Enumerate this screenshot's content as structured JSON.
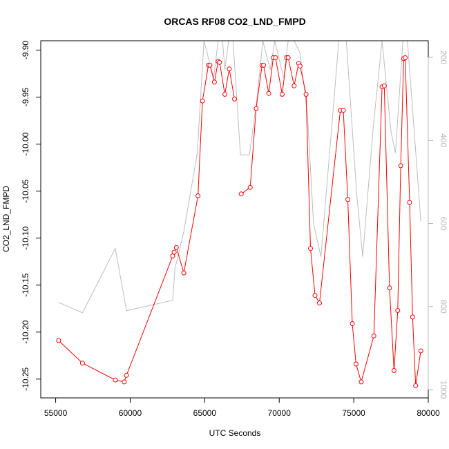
{
  "chart_data": {
    "type": "line",
    "title": "ORCAS RF08 CO2_LND_FMPD",
    "xlabel": "UTC Seconds",
    "ylabel": "CO2_LND_FMPD",
    "xlim": [
      54000,
      80000
    ],
    "ylim": [
      -10.27,
      -9.89
    ],
    "x_ticks": [
      55000,
      60000,
      65000,
      70000,
      75000,
      80000
    ],
    "y_ticks": [
      -9.9,
      -9.95,
      -10.0,
      -10.05,
      -10.1,
      -10.15,
      -10.2,
      -10.25
    ],
    "y_tick_labels": [
      "-9.90",
      "-9.95",
      "-10.00",
      "-10.05",
      "-10.10",
      "-10.15",
      "-10.20",
      "-10.25"
    ],
    "y2lim": [
      1020,
      160
    ],
    "y2_ticks": [
      200,
      400,
      600,
      800,
      1000
    ],
    "grid": false,
    "series": [
      {
        "color": "#ff0000",
        "style": "line-with-circles",
        "gap_after_index": 17,
        "points": [
          [
            55200,
            -10.209
          ],
          [
            56800,
            -10.233
          ],
          [
            59000,
            -10.251
          ],
          [
            59600,
            -10.253
          ],
          [
            59750,
            -10.246
          ],
          [
            62850,
            -10.119
          ],
          [
            62950,
            -10.115
          ],
          [
            63100,
            -10.11
          ],
          [
            63600,
            -10.137
          ],
          [
            64550,
            -10.055
          ],
          [
            64850,
            -9.954
          ],
          [
            65250,
            -9.916
          ],
          [
            65350,
            -9.916
          ],
          [
            65650,
            -9.934
          ],
          [
            65900,
            -9.912
          ],
          [
            66000,
            -9.913
          ],
          [
            66350,
            -9.947
          ],
          [
            66650,
            -9.92
          ],
          [
            67000,
            -9.952
          ],
          [
            67450,
            -10.053
          ],
          [
            68050,
            -10.046
          ],
          [
            68450,
            -9.962
          ],
          [
            68850,
            -9.916
          ],
          [
            68950,
            -9.916
          ],
          [
            69300,
            -9.946
          ],
          [
            69600,
            -9.908
          ],
          [
            69750,
            -9.908
          ],
          [
            70200,
            -9.947
          ],
          [
            70500,
            -9.908
          ],
          [
            70600,
            -9.908
          ],
          [
            71000,
            -9.938
          ],
          [
            71300,
            -9.914
          ],
          [
            71400,
            -9.917
          ],
          [
            71800,
            -9.947
          ],
          [
            72100,
            -10.111
          ],
          [
            72400,
            -10.161
          ],
          [
            72700,
            -10.169
          ],
          [
            74100,
            -9.964
          ],
          [
            74300,
            -9.964
          ],
          [
            74600,
            -10.059
          ],
          [
            74900,
            -10.191
          ],
          [
            75150,
            -10.234
          ],
          [
            75500,
            -10.253
          ],
          [
            76350,
            -10.204
          ],
          [
            76900,
            -9.939
          ],
          [
            77050,
            -9.938
          ],
          [
            77400,
            -10.153
          ],
          [
            77700,
            -10.241
          ],
          [
            77950,
            -10.177
          ],
          [
            78150,
            -10.023
          ],
          [
            78350,
            -9.909
          ],
          [
            78450,
            -9.908
          ],
          [
            78750,
            -10.062
          ],
          [
            78950,
            -10.184
          ],
          [
            79150,
            -10.257
          ],
          [
            79500,
            -10.22
          ]
        ]
      },
      {
        "color": "#bdbdbd",
        "style": "line",
        "axis": "right",
        "points": [
          [
            55200,
            790
          ],
          [
            56800,
            815
          ],
          [
            59000,
            660
          ],
          [
            59750,
            810
          ],
          [
            62850,
            785
          ],
          [
            63000,
            710
          ],
          [
            63600,
            620
          ],
          [
            64500,
            430
          ],
          [
            64950,
            160
          ],
          [
            65600,
            250
          ],
          [
            65900,
            160
          ],
          [
            66200,
            160
          ],
          [
            66350,
            230
          ],
          [
            66600,
            160
          ],
          [
            66900,
            160
          ],
          [
            67400,
            435
          ],
          [
            68000,
            435
          ],
          [
            68500,
            300
          ],
          [
            68900,
            160
          ],
          [
            69400,
            230
          ],
          [
            69700,
            160
          ],
          [
            70300,
            250
          ],
          [
            70600,
            160
          ],
          [
            71000,
            160
          ],
          [
            71400,
            190
          ],
          [
            71900,
            340
          ],
          [
            72300,
            600
          ],
          [
            72800,
            680
          ],
          [
            73400,
            420
          ],
          [
            74000,
            160
          ],
          [
            74500,
            160
          ],
          [
            75200,
            530
          ],
          [
            75600,
            680
          ],
          [
            76300,
            370
          ],
          [
            76900,
            160
          ],
          [
            77500,
            380
          ],
          [
            77800,
            430
          ],
          [
            78300,
            160
          ],
          [
            78600,
            160
          ],
          [
            79000,
            350
          ],
          [
            79500,
            595
          ]
        ]
      }
    ]
  }
}
